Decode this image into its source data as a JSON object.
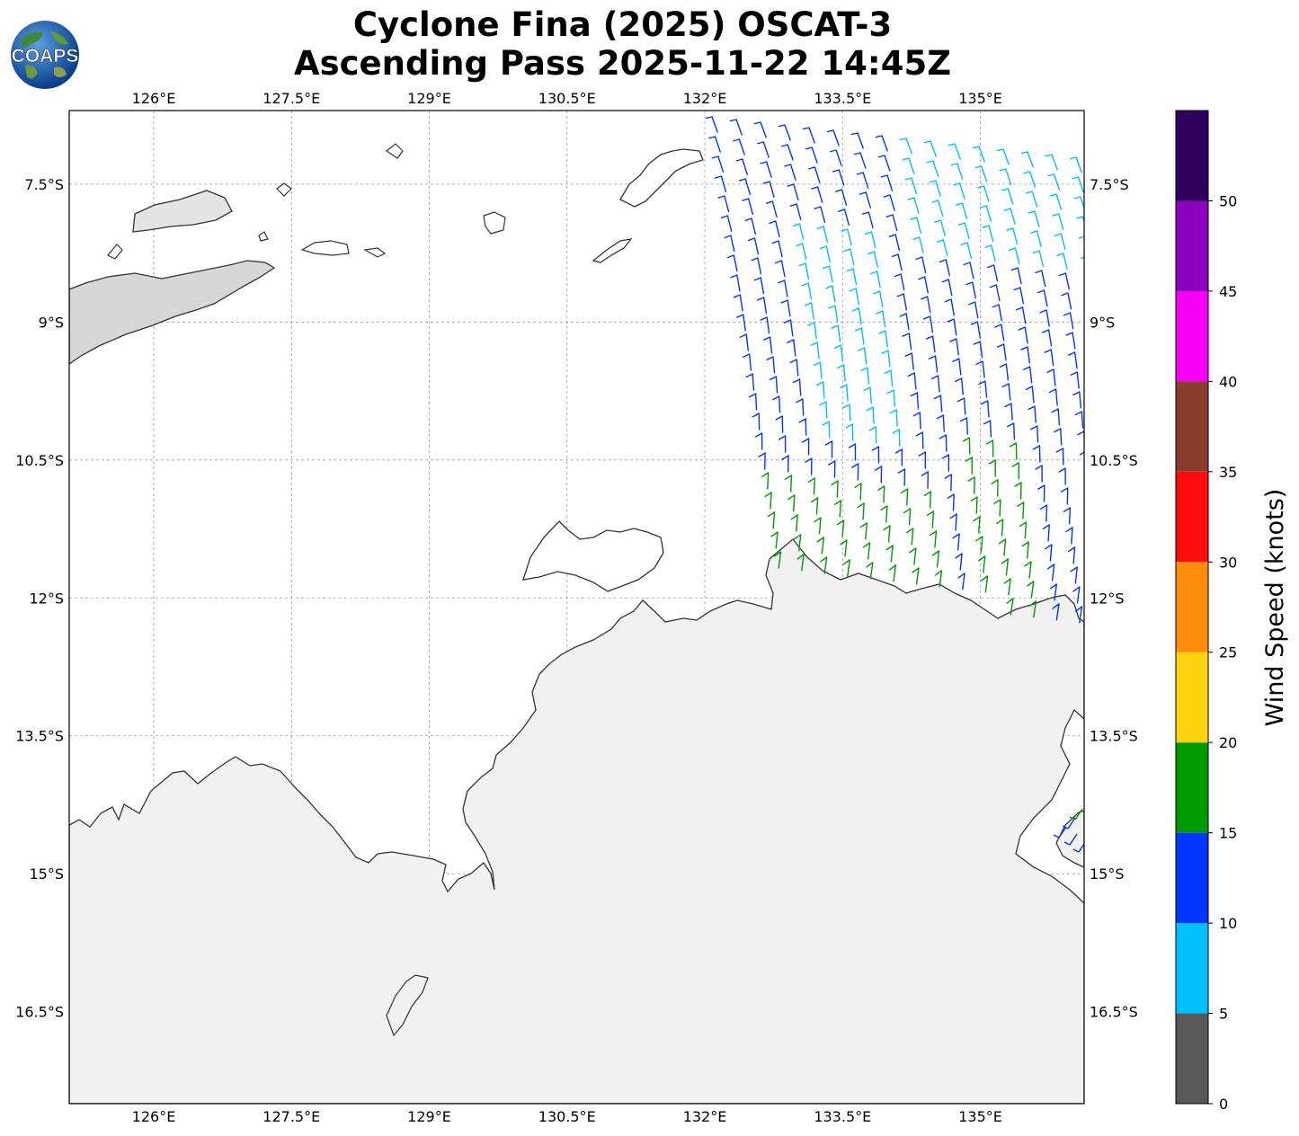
{
  "title": {
    "line1": "Cyclone Fina (2025) OSCAT-3",
    "line2": "Ascending Pass 2025-11-22 14:45Z"
  },
  "logo": {
    "text": "COAPS",
    "icon": "globe-logo-icon"
  },
  "map": {
    "lon_range": [
      125.08,
      136.13
    ],
    "lat_range": [
      -17.5,
      -6.7
    ],
    "lon_ticks": [
      "126°E",
      "127.5°E",
      "129°E",
      "130.5°E",
      "132°E",
      "133.5°E",
      "135°E"
    ],
    "lat_ticks": [
      "7.5°S",
      "9°S",
      "10.5°S",
      "12°S",
      "13.5°S",
      "15°S",
      "16.5°S"
    ],
    "gridlines": true,
    "land_color": "#f0f0f0",
    "coast_color": "#333333"
  },
  "colorbar": {
    "label": "Wind Speed (knots)",
    "tick_labels": [
      "0",
      "5",
      "10",
      "15",
      "20",
      "25",
      "30",
      "35",
      "40",
      "45",
      "50"
    ],
    "bins": [
      {
        "min": 0,
        "max": 5,
        "color": "#595959"
      },
      {
        "min": 5,
        "max": 10,
        "color": "#00bfff"
      },
      {
        "min": 10,
        "max": 15,
        "color": "#0035ff"
      },
      {
        "min": 15,
        "max": 20,
        "color": "#009900"
      },
      {
        "min": 20,
        "max": 25,
        "color": "#ffd30f"
      },
      {
        "min": 25,
        "max": 30,
        "color": "#ff8c0a"
      },
      {
        "min": 30,
        "max": 35,
        "color": "#ff0d0d"
      },
      {
        "min": 35,
        "max": 40,
        "color": "#8a3d2e"
      },
      {
        "min": 40,
        "max": 45,
        "color": "#f500f5"
      },
      {
        "min": 45,
        "max": 50,
        "color": "#8a00bd"
      },
      {
        "min": 50,
        "max": 55,
        "color": "#2e005c"
      }
    ]
  }
}
